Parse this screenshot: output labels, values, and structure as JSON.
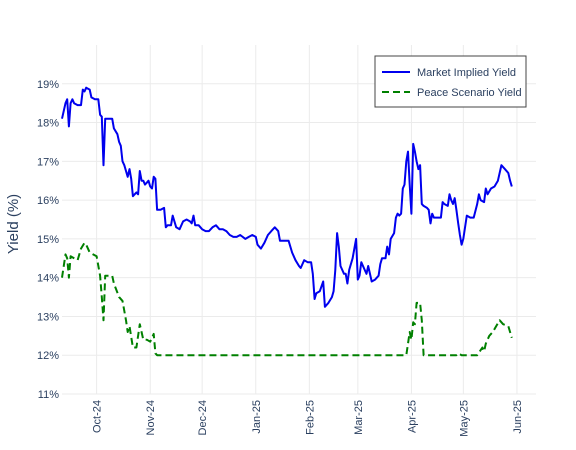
{
  "chart_data": {
    "type": "line",
    "title": "",
    "xlabel": "",
    "ylabel": "Yield (%)",
    "x_range": [
      "2024-09-11",
      "2025-06-12"
    ],
    "ylim": [
      11,
      20
    ],
    "y_ticks": [
      11,
      12,
      13,
      14,
      15,
      16,
      17,
      18,
      19
    ],
    "y_tick_labels": [
      "11%",
      "12%",
      "13%",
      "14%",
      "15%",
      "16%",
      "17%",
      "18%",
      "19%"
    ],
    "x_ticks": [
      "2024-10-01",
      "2024-11-01",
      "2024-12-01",
      "2025-01-01",
      "2025-02-01",
      "2025-03-01",
      "2025-04-01",
      "2025-05-01",
      "2025-06-01"
    ],
    "x_tick_labels": [
      "Oct-24",
      "Nov-24",
      "Dec-24",
      "Jan-25",
      "Feb-25",
      "Mar-25",
      "Apr-25",
      "May-25",
      "Jun-25"
    ],
    "grid": true,
    "legend_position": "top-right",
    "series": [
      {
        "name": "Market Implied Yield",
        "color": "#0000ee",
        "dash": "solid",
        "points": [
          [
            "2024-09-11",
            18.1
          ],
          [
            "2024-09-13",
            18.5
          ],
          [
            "2024-09-14",
            18.6
          ],
          [
            "2024-09-15",
            17.9
          ],
          [
            "2024-09-16",
            18.5
          ],
          [
            "2024-09-17",
            18.6
          ],
          [
            "2024-09-18",
            18.5
          ],
          [
            "2024-09-20",
            18.45
          ],
          [
            "2024-09-22",
            18.45
          ],
          [
            "2024-09-23",
            18.85
          ],
          [
            "2024-09-24",
            18.8
          ],
          [
            "2024-09-25",
            18.9
          ],
          [
            "2024-09-27",
            18.85
          ],
          [
            "2024-09-28",
            18.65
          ],
          [
            "2024-09-30",
            18.6
          ],
          [
            "2024-10-02",
            18.6
          ],
          [
            "2024-10-03",
            18.2
          ],
          [
            "2024-10-04",
            18.15
          ],
          [
            "2024-10-05",
            16.9
          ],
          [
            "2024-10-06",
            18.1
          ],
          [
            "2024-10-10",
            18.1
          ],
          [
            "2024-10-11",
            17.85
          ],
          [
            "2024-10-13",
            17.7
          ],
          [
            "2024-10-14",
            17.5
          ],
          [
            "2024-10-15",
            17.4
          ],
          [
            "2024-10-16",
            17.0
          ],
          [
            "2024-10-17",
            16.9
          ],
          [
            "2024-10-18",
            16.75
          ],
          [
            "2024-10-19",
            16.6
          ],
          [
            "2024-10-20",
            16.8
          ],
          [
            "2024-10-21",
            16.55
          ],
          [
            "2024-10-22",
            16.1
          ],
          [
            "2024-10-24",
            16.2
          ],
          [
            "2024-10-25",
            16.15
          ],
          [
            "2024-10-26",
            16.75
          ],
          [
            "2024-10-27",
            16.5
          ],
          [
            "2024-10-28",
            16.5
          ],
          [
            "2024-10-29",
            16.4
          ],
          [
            "2024-10-30",
            16.45
          ],
          [
            "2024-10-31",
            16.5
          ],
          [
            "2024-11-01",
            16.35
          ],
          [
            "2024-11-02",
            16.3
          ],
          [
            "2024-11-03",
            16.6
          ],
          [
            "2024-11-04",
            16.55
          ],
          [
            "2024-11-05",
            15.75
          ],
          [
            "2024-11-07",
            15.75
          ],
          [
            "2024-11-09",
            15.8
          ],
          [
            "2024-11-10",
            15.3
          ],
          [
            "2024-11-11",
            15.35
          ],
          [
            "2024-11-13",
            15.35
          ],
          [
            "2024-11-14",
            15.6
          ],
          [
            "2024-11-16",
            15.3
          ],
          [
            "2024-11-18",
            15.25
          ],
          [
            "2024-11-20",
            15.45
          ],
          [
            "2024-11-22",
            15.5
          ],
          [
            "2024-11-24",
            15.45
          ],
          [
            "2024-11-25",
            15.4
          ],
          [
            "2024-11-26",
            15.6
          ],
          [
            "2024-11-27",
            15.35
          ],
          [
            "2024-11-29",
            15.35
          ],
          [
            "2024-12-01",
            15.25
          ],
          [
            "2024-12-03",
            15.2
          ],
          [
            "2024-12-05",
            15.2
          ],
          [
            "2024-12-07",
            15.3
          ],
          [
            "2024-12-09",
            15.35
          ],
          [
            "2024-12-11",
            15.25
          ],
          [
            "2024-12-13",
            15.25
          ],
          [
            "2024-12-15",
            15.2
          ],
          [
            "2024-12-17",
            15.1
          ],
          [
            "2024-12-19",
            15.05
          ],
          [
            "2024-12-21",
            15.05
          ],
          [
            "2024-12-23",
            15.1
          ],
          [
            "2024-12-26",
            15.0
          ],
          [
            "2024-12-28",
            15.05
          ],
          [
            "2024-12-30",
            15.1
          ],
          [
            "2025-01-01",
            15.05
          ],
          [
            "2025-01-02",
            14.85
          ],
          [
            "2025-01-04",
            14.75
          ],
          [
            "2025-01-06",
            14.9
          ],
          [
            "2025-01-08",
            15.1
          ],
          [
            "2025-01-10",
            15.2
          ],
          [
            "2025-01-12",
            15.3
          ],
          [
            "2025-01-14",
            15.2
          ],
          [
            "2025-01-15",
            14.95
          ],
          [
            "2025-01-18",
            14.95
          ],
          [
            "2025-01-20",
            14.95
          ],
          [
            "2025-01-22",
            14.65
          ],
          [
            "2025-01-24",
            14.45
          ],
          [
            "2025-01-26",
            14.3
          ],
          [
            "2025-01-27",
            14.25
          ],
          [
            "2025-01-29",
            14.45
          ],
          [
            "2025-01-31",
            14.4
          ],
          [
            "2025-02-02",
            14.4
          ],
          [
            "2025-02-03",
            14.1
          ],
          [
            "2025-02-04",
            13.45
          ],
          [
            "2025-02-05",
            13.6
          ],
          [
            "2025-02-07",
            13.65
          ],
          [
            "2025-02-09",
            13.9
          ],
          [
            "2025-02-10",
            13.25
          ],
          [
            "2025-02-12",
            13.35
          ],
          [
            "2025-02-14",
            13.5
          ],
          [
            "2025-02-15",
            13.65
          ],
          [
            "2025-02-16",
            14.2
          ],
          [
            "2025-02-17",
            15.15
          ],
          [
            "2025-02-18",
            14.8
          ],
          [
            "2025-02-19",
            14.3
          ],
          [
            "2025-02-21",
            14.1
          ],
          [
            "2025-02-22",
            14.1
          ],
          [
            "2025-02-23",
            13.85
          ],
          [
            "2025-02-24",
            14.2
          ],
          [
            "2025-02-26",
            14.5
          ],
          [
            "2025-02-28",
            15.0
          ],
          [
            "2025-03-01",
            13.95
          ],
          [
            "2025-03-02",
            14.05
          ],
          [
            "2025-03-03",
            14.4
          ],
          [
            "2025-03-05",
            14.2
          ],
          [
            "2025-03-06",
            14.1
          ],
          [
            "2025-03-07",
            14.3
          ],
          [
            "2025-03-09",
            13.9
          ],
          [
            "2025-03-11",
            13.95
          ],
          [
            "2025-03-13",
            14.05
          ],
          [
            "2025-03-14",
            14.35
          ],
          [
            "2025-03-15",
            14.5
          ],
          [
            "2025-03-17",
            14.5
          ],
          [
            "2025-03-18",
            14.8
          ],
          [
            "2025-03-19",
            14.6
          ],
          [
            "2025-03-20",
            15.0
          ],
          [
            "2025-03-22",
            15.15
          ],
          [
            "2025-03-23",
            15.55
          ],
          [
            "2025-03-24",
            15.65
          ],
          [
            "2025-03-25",
            15.6
          ],
          [
            "2025-03-26",
            15.65
          ],
          [
            "2025-03-27",
            16.3
          ],
          [
            "2025-03-28",
            16.4
          ],
          [
            "2025-03-29",
            17.0
          ],
          [
            "2025-03-30",
            17.25
          ],
          [
            "2025-03-31",
            16.4
          ],
          [
            "2025-04-01",
            15.65
          ],
          [
            "2025-04-02",
            17.45
          ],
          [
            "2025-04-03",
            17.25
          ],
          [
            "2025-04-04",
            17.0
          ],
          [
            "2025-04-05",
            16.8
          ],
          [
            "2025-04-06",
            16.9
          ],
          [
            "2025-04-07",
            15.9
          ],
          [
            "2025-04-08",
            15.85
          ],
          [
            "2025-04-10",
            15.8
          ],
          [
            "2025-04-11",
            15.75
          ],
          [
            "2025-04-12",
            15.4
          ],
          [
            "2025-04-13",
            15.65
          ],
          [
            "2025-04-14",
            15.55
          ],
          [
            "2025-04-16",
            15.55
          ],
          [
            "2025-04-18",
            15.55
          ],
          [
            "2025-04-19",
            15.95
          ],
          [
            "2025-04-20",
            15.9
          ],
          [
            "2025-04-22",
            15.85
          ],
          [
            "2025-04-23",
            16.15
          ],
          [
            "2025-04-24",
            16.0
          ],
          [
            "2025-04-25",
            15.9
          ],
          [
            "2025-04-26",
            16.05
          ],
          [
            "2025-04-27",
            15.75
          ],
          [
            "2025-04-28",
            15.4
          ],
          [
            "2025-04-29",
            15.1
          ],
          [
            "2025-04-30",
            14.85
          ],
          [
            "2025-05-01",
            15.0
          ],
          [
            "2025-05-03",
            15.6
          ],
          [
            "2025-05-05",
            15.55
          ],
          [
            "2025-05-07",
            15.55
          ],
          [
            "2025-05-09",
            15.9
          ],
          [
            "2025-05-10",
            16.15
          ],
          [
            "2025-05-11",
            16.0
          ],
          [
            "2025-05-13",
            15.95
          ],
          [
            "2025-05-14",
            16.3
          ],
          [
            "2025-05-15",
            16.15
          ],
          [
            "2025-05-17",
            16.3
          ],
          [
            "2025-05-19",
            16.35
          ],
          [
            "2025-05-21",
            16.5
          ],
          [
            "2025-05-23",
            16.9
          ],
          [
            "2025-05-25",
            16.8
          ],
          [
            "2025-05-27",
            16.7
          ],
          [
            "2025-05-28",
            16.5
          ],
          [
            "2025-05-29",
            16.35
          ]
        ]
      },
      {
        "name": "Peace Scenario Yield",
        "color": "#008000",
        "dash": "dashed",
        "points": [
          [
            "2024-09-11",
            14.0
          ],
          [
            "2024-09-13",
            14.6
          ],
          [
            "2024-09-14",
            14.5
          ],
          [
            "2024-09-15",
            14.0
          ],
          [
            "2024-09-16",
            14.55
          ],
          [
            "2024-09-18",
            14.5
          ],
          [
            "2024-09-20",
            14.45
          ],
          [
            "2024-09-22",
            14.75
          ],
          [
            "2024-09-24",
            14.9
          ],
          [
            "2024-09-25",
            14.85
          ],
          [
            "2024-09-27",
            14.65
          ],
          [
            "2024-09-29",
            14.6
          ],
          [
            "2024-10-01",
            14.55
          ],
          [
            "2024-10-03",
            14.05
          ],
          [
            "2024-10-04",
            13.5
          ],
          [
            "2024-10-05",
            12.9
          ],
          [
            "2024-10-06",
            14.05
          ],
          [
            "2024-10-10",
            14.05
          ],
          [
            "2024-10-11",
            13.85
          ],
          [
            "2024-10-14",
            13.5
          ],
          [
            "2024-10-16",
            13.4
          ],
          [
            "2024-10-18",
            12.9
          ],
          [
            "2024-10-19",
            12.6
          ],
          [
            "2024-10-20",
            12.75
          ],
          [
            "2024-10-22",
            12.2
          ],
          [
            "2024-10-24",
            12.2
          ],
          [
            "2024-10-26",
            12.8
          ],
          [
            "2024-10-28",
            12.4
          ],
          [
            "2024-10-30",
            12.4
          ],
          [
            "2024-11-01",
            12.35
          ],
          [
            "2024-11-03",
            12.55
          ],
          [
            "2024-11-04",
            12.05
          ],
          [
            "2024-11-05",
            12.0
          ],
          [
            "2025-03-29",
            12.0
          ],
          [
            "2025-03-30",
            12.3
          ],
          [
            "2025-03-31",
            12.6
          ],
          [
            "2025-04-01",
            12.4
          ],
          [
            "2025-04-02",
            12.85
          ],
          [
            "2025-04-03",
            12.8
          ],
          [
            "2025-04-04",
            13.35
          ],
          [
            "2025-04-06",
            13.35
          ],
          [
            "2025-04-07",
            12.9
          ],
          [
            "2025-04-08",
            12.0
          ],
          [
            "2025-04-27",
            12.0
          ],
          [
            "2025-04-28",
            12.05
          ],
          [
            "2025-04-30",
            12.0
          ],
          [
            "2025-05-09",
            12.0
          ],
          [
            "2025-05-12",
            12.2
          ],
          [
            "2025-05-13",
            12.1
          ],
          [
            "2025-05-14",
            12.3
          ],
          [
            "2025-05-16",
            12.5
          ],
          [
            "2025-05-18",
            12.6
          ],
          [
            "2025-05-20",
            12.75
          ],
          [
            "2025-05-22",
            12.9
          ],
          [
            "2025-05-24",
            12.8
          ],
          [
            "2025-05-27",
            12.75
          ],
          [
            "2025-05-29",
            12.45
          ]
        ]
      }
    ]
  }
}
